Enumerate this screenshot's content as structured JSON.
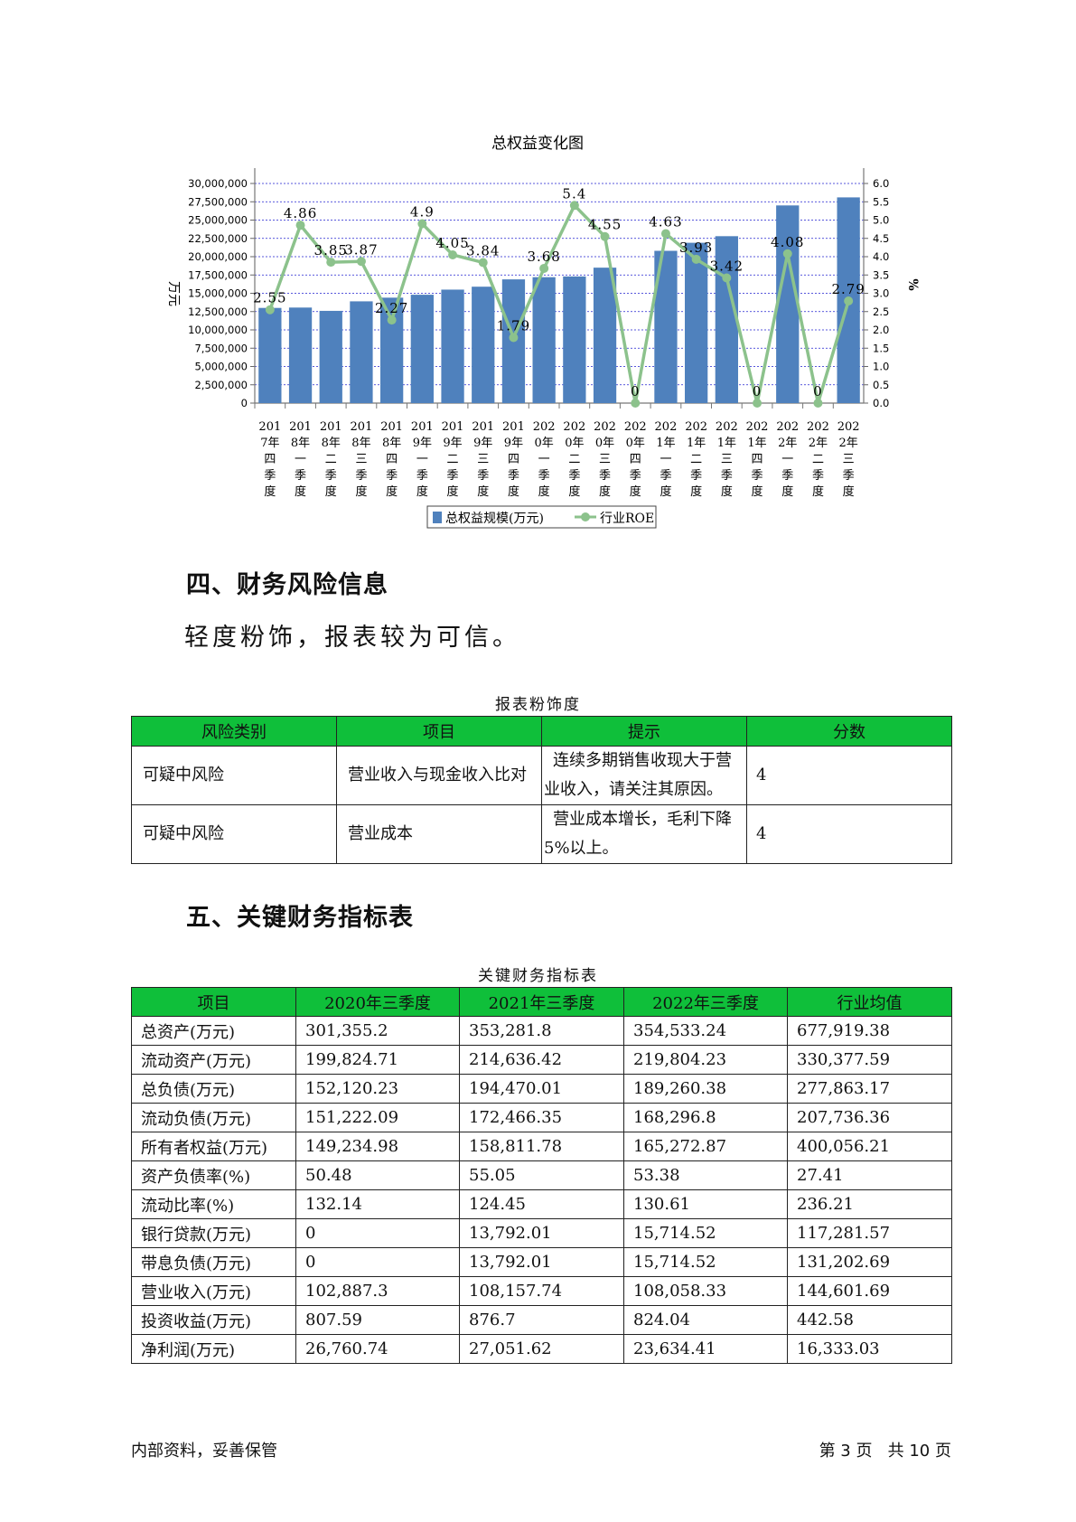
{
  "chart_data": {
    "type": "bar",
    "title": "总权益变化图",
    "ylabel": "万元",
    "y2label": "%",
    "ylim": [
      0,
      30000000
    ],
    "y2lim": [
      0,
      6.0
    ],
    "y_ticks": [
      "0",
      "2,500,000",
      "5,000,000",
      "7,500,000",
      "10,000,000",
      "12,500,000",
      "15,000,000",
      "17,500,000",
      "20,000,000",
      "22,500,000",
      "25,000,000",
      "27,500,000",
      "30,000,000"
    ],
    "y2_ticks": [
      "0.0",
      "0.5",
      "1.0",
      "1.5",
      "2.0",
      "2.5",
      "3.0",
      "3.5",
      "4.0",
      "4.5",
      "5.0",
      "5.5",
      "6.0"
    ],
    "categories": [
      [
        "201",
        "7年",
        "四",
        "季",
        "度"
      ],
      [
        "201",
        "8年",
        "一",
        "季",
        "度"
      ],
      [
        "201",
        "8年",
        "二",
        "季",
        "度"
      ],
      [
        "201",
        "8年",
        "三",
        "季",
        "度"
      ],
      [
        "201",
        "8年",
        "四",
        "季",
        "度"
      ],
      [
        "201",
        "9年",
        "一",
        "季",
        "度"
      ],
      [
        "201",
        "9年",
        "二",
        "季",
        "度"
      ],
      [
        "201",
        "9年",
        "三",
        "季",
        "度"
      ],
      [
        "201",
        "9年",
        "四",
        "季",
        "度"
      ],
      [
        "202",
        "0年",
        "一",
        "季",
        "度"
      ],
      [
        "202",
        "0年",
        "二",
        "季",
        "度"
      ],
      [
        "202",
        "0年",
        "三",
        "季",
        "度"
      ],
      [
        "202",
        "0年",
        "四",
        "季",
        "度"
      ],
      [
        "202",
        "1年",
        "一",
        "季",
        "度"
      ],
      [
        "202",
        "1年",
        "二",
        "季",
        "度"
      ],
      [
        "202",
        "1年",
        "三",
        "季",
        "度"
      ],
      [
        "202",
        "1年",
        "四",
        "季",
        "度"
      ],
      [
        "202",
        "2年",
        "一",
        "季",
        "度"
      ],
      [
        "202",
        "2年",
        "二",
        "季",
        "度"
      ],
      [
        "202",
        "2年",
        "三",
        "季",
        "度"
      ]
    ],
    "series": [
      {
        "name": "总权益规模(万元)",
        "type": "bar",
        "color": "#4f81bd",
        "values": [
          13000000,
          13050000,
          12600000,
          13900000,
          14400000,
          14800000,
          15500000,
          15900000,
          16900000,
          17200000,
          17300000,
          18500000,
          null,
          20800000,
          21900000,
          22800000,
          null,
          27000000,
          null,
          28100000
        ]
      },
      {
        "name": "行业ROE",
        "type": "line",
        "color": "#8cc28c",
        "values": [
          2.55,
          4.86,
          3.85,
          3.87,
          2.27,
          4.9,
          4.05,
          3.84,
          1.79,
          3.68,
          5.4,
          4.55,
          0,
          4.63,
          3.93,
          3.42,
          0,
          4.08,
          0,
          2.79
        ],
        "labels": [
          "2.55",
          "4.86",
          "3.85",
          "3.87",
          "2.27",
          "4.9",
          "4.05",
          "3.84",
          "1.79",
          "3.68",
          "5.4",
          "4.55",
          "0",
          "4.63",
          "3.93",
          "3.42",
          "0",
          "4.08",
          "0",
          "2.79"
        ]
      }
    ],
    "grid": true,
    "legend": "bottom"
  },
  "section4": {
    "heading": "四、财务风险信息",
    "text": "轻度粉饰，报表较为可信。",
    "table_caption": "报表粉饰度",
    "columns": [
      "风险类别",
      "项目",
      "提示",
      "分数"
    ],
    "rows": [
      {
        "category": "可疑中风险",
        "item": "营业收入与现金收入比对",
        "hint": "连续多期销售收现大于营业收入，请关注其原因。",
        "score": "4"
      },
      {
        "category": "可疑中风险",
        "item": "营业成本",
        "hint": "营业成本增长，毛利下降5%以上。",
        "score": "4"
      }
    ]
  },
  "section5": {
    "heading": "五、关键财务指标表",
    "table_caption": "关键财务指标表",
    "columns": [
      "项目",
      "2020年三季度",
      "2021年三季度",
      "2022年三季度",
      "行业均值"
    ],
    "rows": [
      [
        "总资产(万元)",
        "301,355.2",
        "353,281.8",
        "354,533.24",
        "677,919.38"
      ],
      [
        "流动资产(万元)",
        "199,824.71",
        "214,636.42",
        "219,804.23",
        "330,377.59"
      ],
      [
        "总负债(万元)",
        "152,120.23",
        "194,470.01",
        "189,260.38",
        "277,863.17"
      ],
      [
        "流动负债(万元)",
        "151,222.09",
        "172,466.35",
        "168,296.8",
        "207,736.36"
      ],
      [
        "所有者权益(万元)",
        "149,234.98",
        "158,811.78",
        "165,272.87",
        "400,056.21"
      ],
      [
        "资产负债率(%)",
        "50.48",
        "55.05",
        "53.38",
        "27.41"
      ],
      [
        "流动比率(%)",
        "132.14",
        "124.45",
        "130.61",
        "236.21"
      ],
      [
        "银行贷款(万元)",
        "0",
        "13,792.01",
        "15,714.52",
        "117,281.57"
      ],
      [
        "带息负债(万元)",
        "0",
        "13,792.01",
        "15,714.52",
        "131,202.69"
      ],
      [
        "营业收入(万元)",
        "102,887.3",
        "108,157.74",
        "108,058.33",
        "144,601.69"
      ],
      [
        "投资收益(万元)",
        "807.59",
        "876.7",
        "824.04",
        "442.58"
      ],
      [
        "净利润(万元)",
        "26,760.74",
        "27,051.62",
        "23,634.41",
        "16,333.03"
      ]
    ]
  },
  "footer": {
    "left": "内部资料，妥善保管",
    "right": "第 3 页   共 10 页"
  }
}
